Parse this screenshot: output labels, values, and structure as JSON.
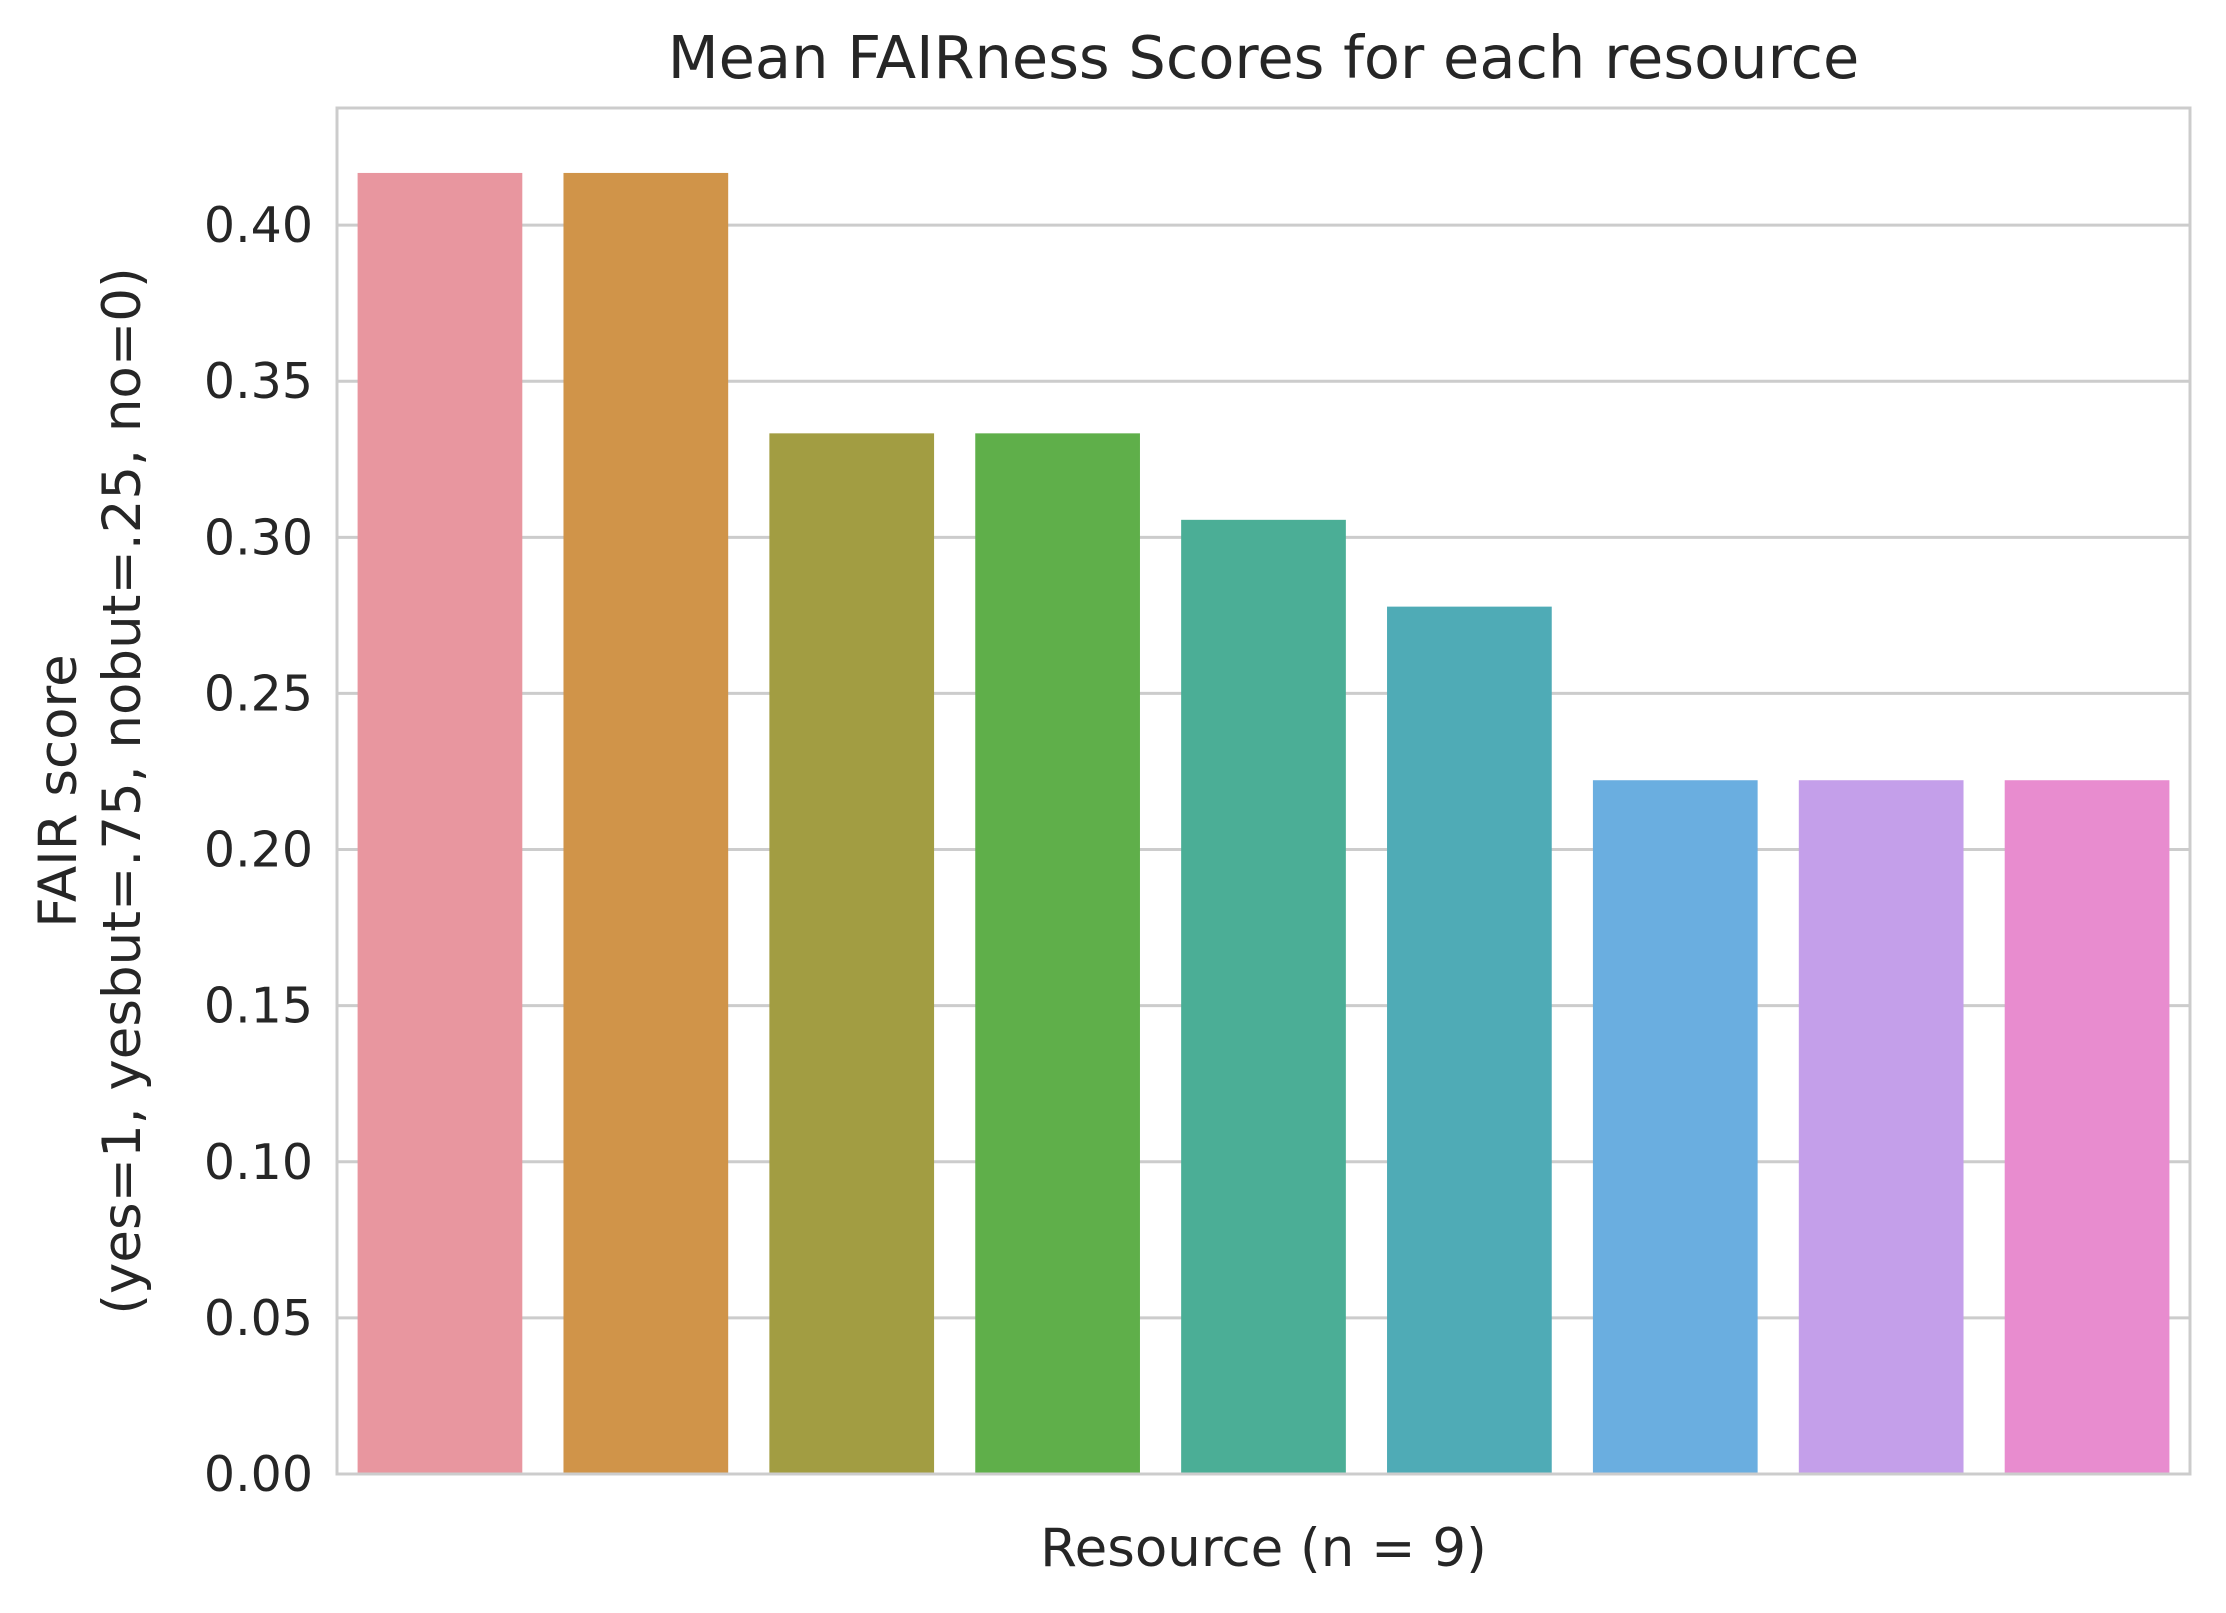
{
  "chart_data": {
    "type": "bar",
    "title": "Mean FAIRness Scores for each resource",
    "xlabel": "Resource (n = 9)",
    "ylabel_line1": "FAIR score",
    "ylabel_line2": "(yes=1, yesbut=.75, nobut=.25, no=0)",
    "ylim": [
      0,
      0.4375
    ],
    "yticks": [
      "0.00",
      "0.05",
      "0.10",
      "0.15",
      "0.20",
      "0.25",
      "0.30",
      "0.35",
      "0.40"
    ],
    "grid": true,
    "legend": "none",
    "values": [
      0.4167,
      0.4167,
      0.3333,
      0.3333,
      0.3056,
      0.2778,
      0.2222,
      0.2222,
      0.2222
    ],
    "colors": [
      "#e8969f",
      "#d09449",
      "#a29d42",
      "#5faf4a",
      "#4bae96",
      "#4fabb6",
      "#6aaee0",
      "#c49fea",
      "#e88ccf"
    ]
  }
}
